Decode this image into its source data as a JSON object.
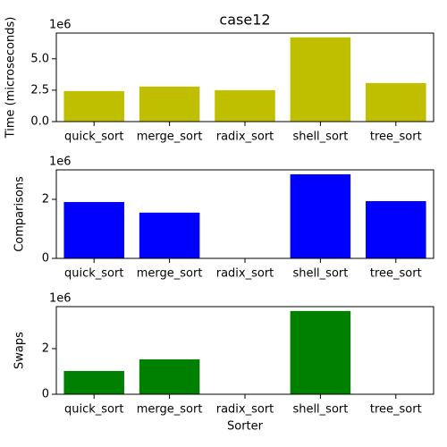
{
  "chart_data": [
    {
      "type": "bar",
      "title": "case12",
      "ylabel": "Time (microseconds)",
      "offset_label": "1e6",
      "categories": [
        "quick_sort",
        "merge_sort",
        "radix_sort",
        "shell_sort",
        "tree_sort"
      ],
      "values": [
        2430000,
        2790000,
        2500000,
        6710000,
        3070000
      ],
      "color": "#bfbf00",
      "ylim": [
        0,
        7050000
      ],
      "yticks": [
        {
          "value": 0,
          "label": "0.0"
        },
        {
          "value": 2500000,
          "label": "2.5"
        },
        {
          "value": 5000000,
          "label": "5.0"
        }
      ]
    },
    {
      "type": "bar",
      "ylabel": "Comparisons",
      "offset_label": "1e6",
      "categories": [
        "quick_sort",
        "merge_sort",
        "radix_sort",
        "shell_sort",
        "tree_sort"
      ],
      "values": [
        1910000,
        1550000,
        0,
        2850000,
        1940000
      ],
      "color": "#0000ff",
      "ylim": [
        0,
        3000000
      ],
      "yticks": [
        0,
        {
          "value": 2000000,
          "label": "2"
        }
      ]
    },
    {
      "type": "bar",
      "ylabel": "Swaps",
      "xlabel": "Sorter",
      "offset_label": "1e6",
      "categories": [
        "quick_sort",
        "merge_sort",
        "radix_sort",
        "shell_sort",
        "tree_sort"
      ],
      "values": [
        1020000,
        1530000,
        0,
        3650000,
        0
      ],
      "color": "#008000",
      "ylim": [
        0,
        3840000
      ],
      "yticks": [
        0,
        {
          "value": 2000000,
          "label": "2"
        }
      ]
    }
  ]
}
